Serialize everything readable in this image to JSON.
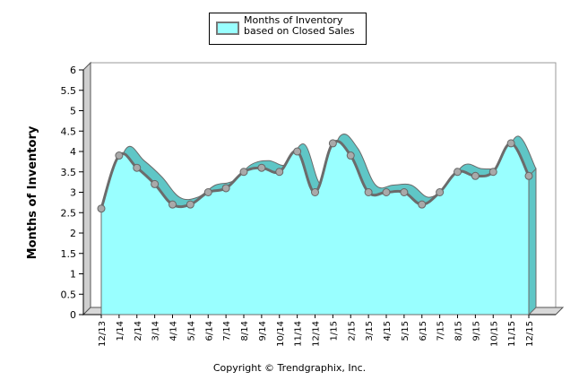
{
  "chart_data": {
    "type": "area",
    "title": "",
    "legend": {
      "label": "Months of Inventory based on Closed Sales",
      "position": "top-center"
    },
    "xlabel": "",
    "ylabel": "Months of Inventory",
    "ylim": [
      0,
      6
    ],
    "yticks": [
      "0",
      "0.5",
      "1",
      "1.5",
      "2",
      "2.5",
      "3",
      "3.5",
      "4",
      "4.5",
      "5",
      "5.5",
      "6"
    ],
    "categories": [
      "12/13",
      "1/14",
      "2/14",
      "3/14",
      "4/14",
      "5/14",
      "6/14",
      "7/14",
      "8/14",
      "9/14",
      "10/14",
      "11/14",
      "12/14",
      "1/15",
      "2/15",
      "3/15",
      "4/15",
      "5/15",
      "6/15",
      "7/15",
      "8/15",
      "9/15",
      "10/15",
      "11/15",
      "12/15"
    ],
    "series": [
      {
        "name": "Months of Inventory based on Closed Sales",
        "values": [
          2.6,
          3.9,
          3.6,
          3.2,
          2.7,
          2.7,
          3.0,
          3.1,
          3.5,
          3.6,
          3.5,
          4.0,
          3.0,
          4.2,
          3.9,
          3.0,
          3.0,
          3.0,
          2.7,
          3.0,
          3.5,
          3.4,
          3.5,
          4.2,
          3.4
        ]
      }
    ],
    "grid": false,
    "colors": {
      "fill": "#99ffff",
      "line": "#6b6b6b",
      "marker": "#a9a9a9",
      "depth": "#5fc6c6"
    }
  },
  "footer": {
    "copyright": "Copyright © Trendgraphix, Inc."
  }
}
